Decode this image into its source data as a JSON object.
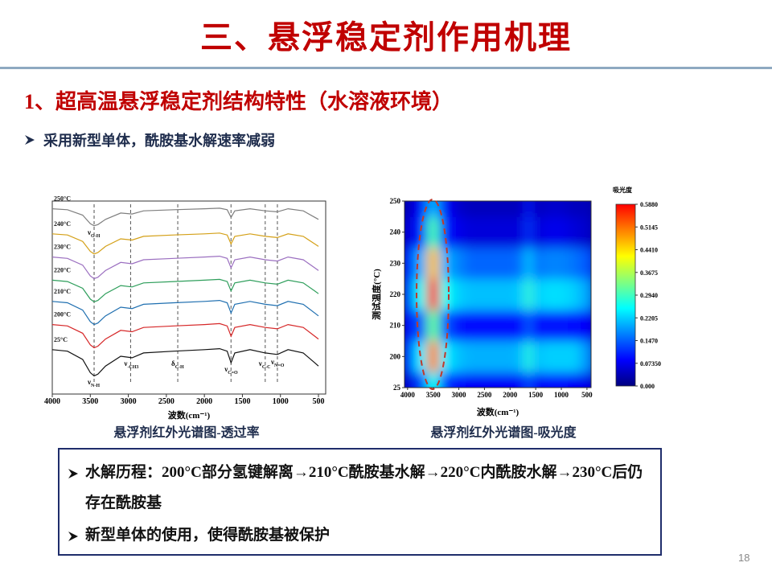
{
  "slide": {
    "title": "三、悬浮稳定剂作用机理",
    "subtitle": "1、超高温悬浮稳定剂结构特性（水溶液环境）",
    "bullet": "采用新型单体，酰胺基水解速率减弱",
    "notes": [
      "水解历程：200°C部分氢键解离→210°C酰胺基水解→220°C内酰胺水解→230°C后仍存在酰胺基",
      "新型单体的使用，使得酰胺基被保护"
    ],
    "page_number": "18"
  },
  "chart_data": [
    {
      "type": "line",
      "caption": "悬浮剂红外光谱图-透过率",
      "x_label": "波数(cm⁻¹)",
      "x": [
        4000,
        3800,
        3600,
        3500,
        3450,
        3400,
        3300,
        3100,
        2950,
        2800,
        2400,
        2000,
        1800,
        1700,
        1650,
        1600,
        1400,
        1200,
        1040,
        900,
        700,
        550,
        500
      ],
      "xlim": [
        4000,
        405
      ],
      "xticks": [
        4000,
        3500,
        3000,
        2500,
        2000,
        1500,
        1000,
        500
      ],
      "ylim": [
        0,
        100
      ],
      "series": [
        {
          "name": "250°C",
          "color": "#7f7f7f",
          "values": [
            96,
            95.5,
            92.7,
            88.3,
            87.2,
            87.8,
            90.5,
            93.8,
            93.3,
            94.9,
            95.5,
            96,
            96.3,
            95.5,
            91.6,
            94.9,
            96,
            94.9,
            94.4,
            96,
            94.9,
            91.6,
            90.5
          ]
        },
        {
          "name": "240°C",
          "color": "#d4a017",
          "values": [
            83,
            82.4,
            79.1,
            73.9,
            72.6,
            73.3,
            76.5,
            80.4,
            79.8,
            81.7,
            82.4,
            83,
            83.4,
            82.4,
            77.8,
            81.7,
            83,
            81.7,
            81.1,
            83,
            81.7,
            77.8,
            76.5
          ]
        },
        {
          "name": "230°C",
          "color": "#9b6fc0",
          "values": [
            71,
            70.3,
            66.8,
            61.2,
            59.8,
            60.5,
            64,
            68.2,
            67.5,
            69.6,
            70.3,
            71,
            71.4,
            70.3,
            65.4,
            69.6,
            71,
            69.6,
            68.9,
            71,
            69.6,
            65.4,
            64
          ]
        },
        {
          "name": "220°C",
          "color": "#2e9e5b",
          "values": [
            59,
            58.3,
            54.8,
            49.2,
            47.8,
            48.5,
            52,
            56.2,
            55.5,
            57.6,
            58.3,
            59,
            59.4,
            58.3,
            53.4,
            57.6,
            59,
            57.6,
            56.9,
            59,
            57.6,
            53.4,
            52
          ]
        },
        {
          "name": "210°C",
          "color": "#1f6fb0",
          "values": [
            48,
            47.3,
            43.5,
            37.5,
            36,
            36.8,
            40.5,
            45,
            44.3,
            46.5,
            47.3,
            48,
            48.5,
            47.3,
            42,
            46.5,
            48,
            46.5,
            45.8,
            48,
            46.5,
            42,
            40.5
          ]
        },
        {
          "name": "200°C",
          "color": "#d62728",
          "values": [
            36,
            35.3,
            31.5,
            25.5,
            24,
            24.8,
            28.5,
            33,
            32.3,
            34.5,
            35.3,
            36,
            36.5,
            35.3,
            30,
            34.5,
            36,
            34.5,
            33.8,
            36,
            34.5,
            30,
            28.5
          ]
        },
        {
          "name": "25°C",
          "color": "#111111",
          "values": [
            23,
            22.2,
            17.9,
            11.1,
            9.4,
            10.3,
            14.5,
            19.6,
            18.8,
            21.3,
            22.2,
            23,
            23.5,
            22.2,
            16.2,
            21.3,
            23,
            21.3,
            20.5,
            23,
            21.3,
            16.2,
            14.5
          ]
        }
      ],
      "annotations": [
        {
          "symbol": "ν",
          "sub": "O-H",
          "x": 3450
        },
        {
          "symbol": "ν",
          "sub": "N-H",
          "x": 3450
        },
        {
          "symbol": "ν",
          "sub": "-CH3",
          "x": 2970
        },
        {
          "symbol": "δ",
          "sub": "C-H",
          "x": 2350
        },
        {
          "symbol": "ν",
          "sub": "C=O",
          "x": 1650
        },
        {
          "symbol": "ν",
          "sub": "C-C",
          "x": 1200
        },
        {
          "symbol": "ν",
          "sub": "N=O",
          "x": 1040
        }
      ]
    },
    {
      "type": "heatmap",
      "caption": "悬浮剂红外光谱图-吸光度",
      "x_label": "波数(cm⁻¹)",
      "y_label": "测试温度(°C)",
      "x": [
        4000,
        3750,
        3500,
        3250,
        3000,
        2750,
        2500,
        2250,
        2000,
        1750,
        1650,
        1500,
        1250,
        1000,
        750,
        500
      ],
      "xlim": [
        4060,
        420
      ],
      "xticks": [
        4000,
        3500,
        3000,
        2500,
        2000,
        1500,
        1000,
        500
      ],
      "y": [
        "25",
        "200",
        "210",
        "220",
        "230",
        "240",
        "250"
      ],
      "z": [
        [
          0.06,
          0.12,
          0.26,
          0.12,
          0.09,
          0.08,
          0.08,
          0.08,
          0.08,
          0.08,
          0.14,
          0.08,
          0.09,
          0.09,
          0.08,
          0.07
        ],
        [
          0.12,
          0.24,
          0.5,
          0.24,
          0.21,
          0.2,
          0.2,
          0.2,
          0.2,
          0.21,
          0.28,
          0.21,
          0.22,
          0.22,
          0.22,
          0.18
        ],
        [
          0.08,
          0.14,
          0.32,
          0.14,
          0.1,
          0.09,
          0.09,
          0.09,
          0.09,
          0.09,
          0.15,
          0.09,
          0.1,
          0.1,
          0.09,
          0.08
        ],
        [
          0.13,
          0.26,
          0.56,
          0.26,
          0.22,
          0.21,
          0.21,
          0.21,
          0.21,
          0.22,
          0.29,
          0.22,
          0.23,
          0.23,
          0.22,
          0.19
        ],
        [
          0.1,
          0.2,
          0.46,
          0.2,
          0.17,
          0.15,
          0.15,
          0.15,
          0.15,
          0.16,
          0.22,
          0.16,
          0.17,
          0.17,
          0.16,
          0.14
        ],
        [
          0.06,
          0.1,
          0.3,
          0.1,
          0.07,
          0.06,
          0.06,
          0.06,
          0.06,
          0.06,
          0.12,
          0.06,
          0.07,
          0.07,
          0.06,
          0.05
        ],
        [
          0.04,
          0.08,
          0.2,
          0.08,
          0.05,
          0.04,
          0.04,
          0.04,
          0.04,
          0.04,
          0.1,
          0.04,
          0.05,
          0.05,
          0.04,
          0.04
        ]
      ],
      "zlim": [
        0,
        0.588
      ],
      "colormap": [
        "#00007f",
        "#0000ff",
        "#0080ff",
        "#00ffff",
        "#80ff80",
        "#ffff00",
        "#ff8000",
        "#ff0000"
      ],
      "colorbar_title": "吸光度",
      "colorbar_ticks": [
        {
          "value": 0,
          "label": "0.000"
        },
        {
          "value": 0.0735,
          "label": "0.07350"
        },
        {
          "value": 0.147,
          "label": "0.1470"
        },
        {
          "value": 0.2205,
          "label": "0.2205"
        },
        {
          "value": 0.294,
          "label": "0.2940"
        },
        {
          "value": 0.3675,
          "label": "0.3675"
        },
        {
          "value": 0.441,
          "label": "0.4410"
        },
        {
          "value": 0.5145,
          "label": "0.5145"
        },
        {
          "value": 0.588,
          "label": "0.5880"
        }
      ]
    }
  ]
}
